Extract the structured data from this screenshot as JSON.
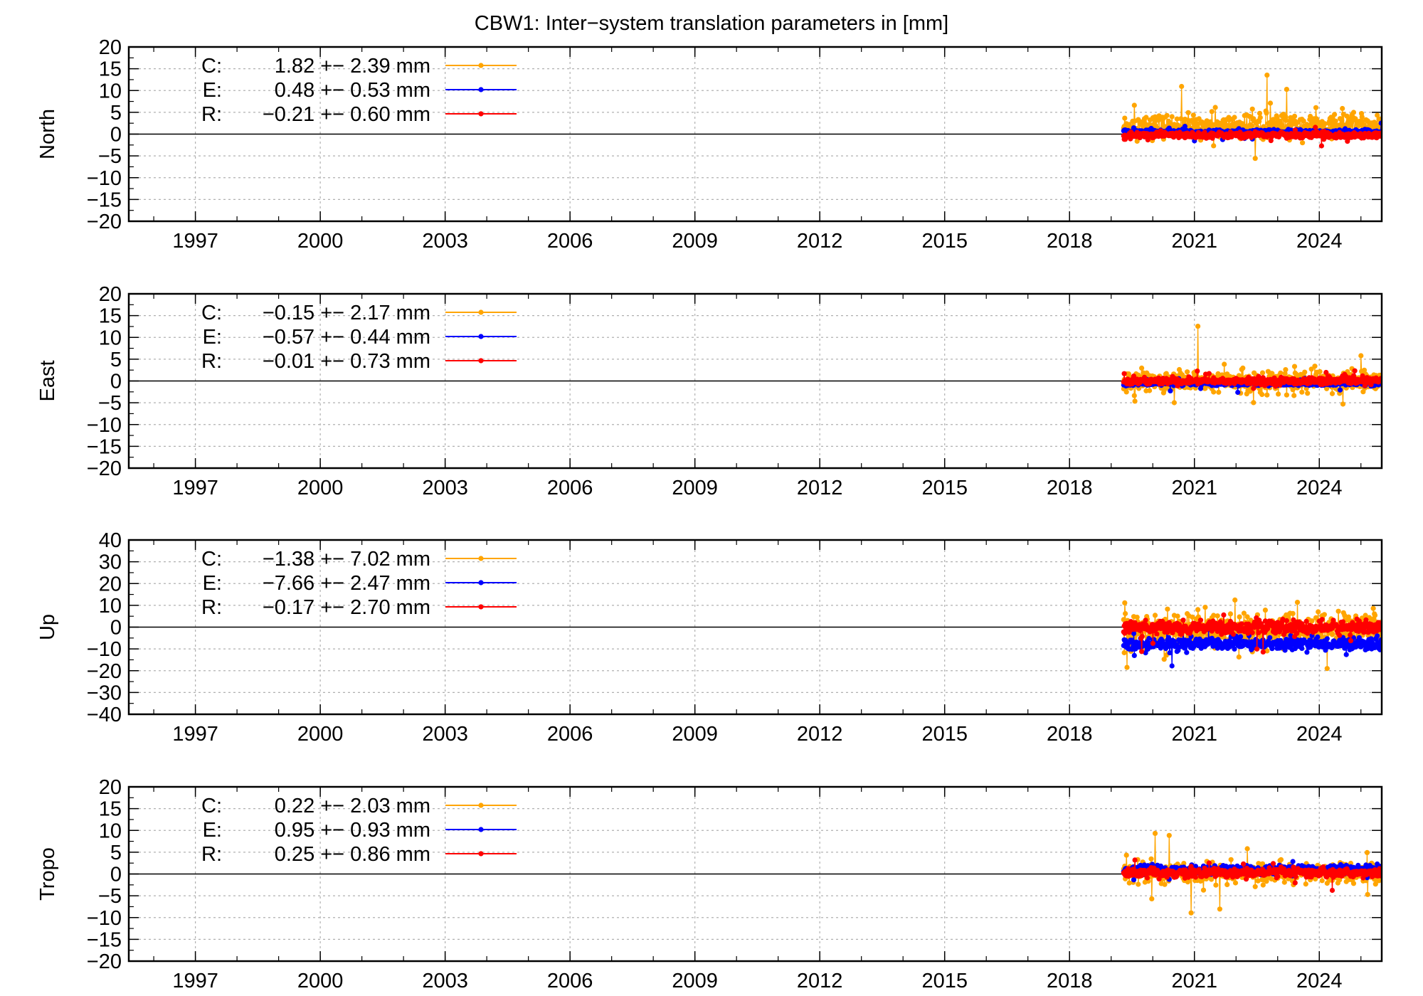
{
  "title": "CBW1: Inter−system translation parameters in [mm]",
  "colors": {
    "C": "#ffa500",
    "E": "#0000ff",
    "R": "#ff0000",
    "grid": "#b0b0b0",
    "frame": "#000000"
  },
  "chart_data": [
    {
      "type": "scatter",
      "ylabel": "North",
      "ylim": [
        -20,
        20
      ],
      "yticks": [
        20,
        15,
        10,
        5,
        0,
        -5,
        -10,
        -15,
        -20
      ],
      "ytick_labels": [
        "20",
        "15",
        "10",
        "5",
        "0",
        "−5",
        "−10",
        "−15",
        "−20"
      ],
      "xlim": [
        1995.4,
        2025.5
      ],
      "xticks": [
        "1997",
        "2000",
        "2003",
        "2006",
        "2009",
        "2012",
        "2015",
        "2018",
        "2021",
        "2024"
      ],
      "data_start": 2019.3,
      "data_end": 2025.5,
      "series": [
        {
          "name": "C",
          "label": "C:",
          "value": "1.82 +− 2.39 mm",
          "mean": 1.82,
          "std": 2.39
        },
        {
          "name": "E",
          "label": "E:",
          "value": "0.48 +− 0.53 mm",
          "mean": 0.48,
          "std": 0.53
        },
        {
          "name": "R",
          "label": "R:",
          "value": "−0.21 +− 0.60 mm",
          "mean": -0.21,
          "std": 0.6
        }
      ]
    },
    {
      "type": "scatter",
      "ylabel": "East",
      "ylim": [
        -20,
        20
      ],
      "yticks": [
        20,
        15,
        10,
        5,
        0,
        -5,
        -10,
        -15,
        -20
      ],
      "ytick_labels": [
        "20",
        "15",
        "10",
        "5",
        "0",
        "−5",
        "−10",
        "−15",
        "−20"
      ],
      "xlim": [
        1995.4,
        2025.5
      ],
      "xticks": [
        "1997",
        "2000",
        "2003",
        "2006",
        "2009",
        "2012",
        "2015",
        "2018",
        "2021",
        "2024"
      ],
      "data_start": 2019.3,
      "data_end": 2025.5,
      "series": [
        {
          "name": "C",
          "label": "C:",
          "value": "−0.15 +− 2.17 mm",
          "mean": -0.15,
          "std": 2.17
        },
        {
          "name": "E",
          "label": "E:",
          "value": "−0.57 +− 0.44 mm",
          "mean": -0.57,
          "std": 0.44
        },
        {
          "name": "R",
          "label": "R:",
          "value": "−0.01 +− 0.73 mm",
          "mean": -0.01,
          "std": 0.73
        }
      ]
    },
    {
      "type": "scatter",
      "ylabel": "Up",
      "ylim": [
        -40,
        40
      ],
      "yticks": [
        40,
        30,
        20,
        10,
        0,
        -10,
        -20,
        -30,
        -40
      ],
      "ytick_labels": [
        "40",
        "30",
        "20",
        "10",
        "0",
        "−10",
        "−20",
        "−30",
        "−40"
      ],
      "xlim": [
        1995.4,
        2025.5
      ],
      "xticks": [
        "1997",
        "2000",
        "2003",
        "2006",
        "2009",
        "2012",
        "2015",
        "2018",
        "2021",
        "2024"
      ],
      "data_start": 2019.3,
      "data_end": 2025.5,
      "series": [
        {
          "name": "C",
          "label": "C:",
          "value": "−1.38 +− 7.02 mm",
          "mean": -1.38,
          "std": 7.02
        },
        {
          "name": "E",
          "label": "E:",
          "value": "−7.66 +− 2.47 mm",
          "mean": -7.66,
          "std": 2.47
        },
        {
          "name": "R",
          "label": "R:",
          "value": "−0.17 +− 2.70 mm",
          "mean": -0.17,
          "std": 2.7
        }
      ]
    },
    {
      "type": "scatter",
      "ylabel": "Tropo",
      "ylim": [
        -20,
        20
      ],
      "yticks": [
        20,
        15,
        10,
        5,
        0,
        -5,
        -10,
        -15,
        -20
      ],
      "ytick_labels": [
        "20",
        "15",
        "10",
        "5",
        "0",
        "−5",
        "−10",
        "−15",
        "−20"
      ],
      "xlim": [
        1995.4,
        2025.5
      ],
      "xticks": [
        "1997",
        "2000",
        "2003",
        "2006",
        "2009",
        "2012",
        "2015",
        "2018",
        "2021",
        "2024"
      ],
      "data_start": 2019.3,
      "data_end": 2025.5,
      "series": [
        {
          "name": "C",
          "label": "C:",
          "value": "0.22 +− 2.03 mm",
          "mean": 0.22,
          "std": 2.03
        },
        {
          "name": "E",
          "label": "E:",
          "value": "0.95 +− 0.93 mm",
          "mean": 0.95,
          "std": 0.93
        },
        {
          "name": "R",
          "label": "R:",
          "value": "0.25 +− 0.86 mm",
          "mean": 0.25,
          "std": 0.86
        }
      ]
    }
  ]
}
